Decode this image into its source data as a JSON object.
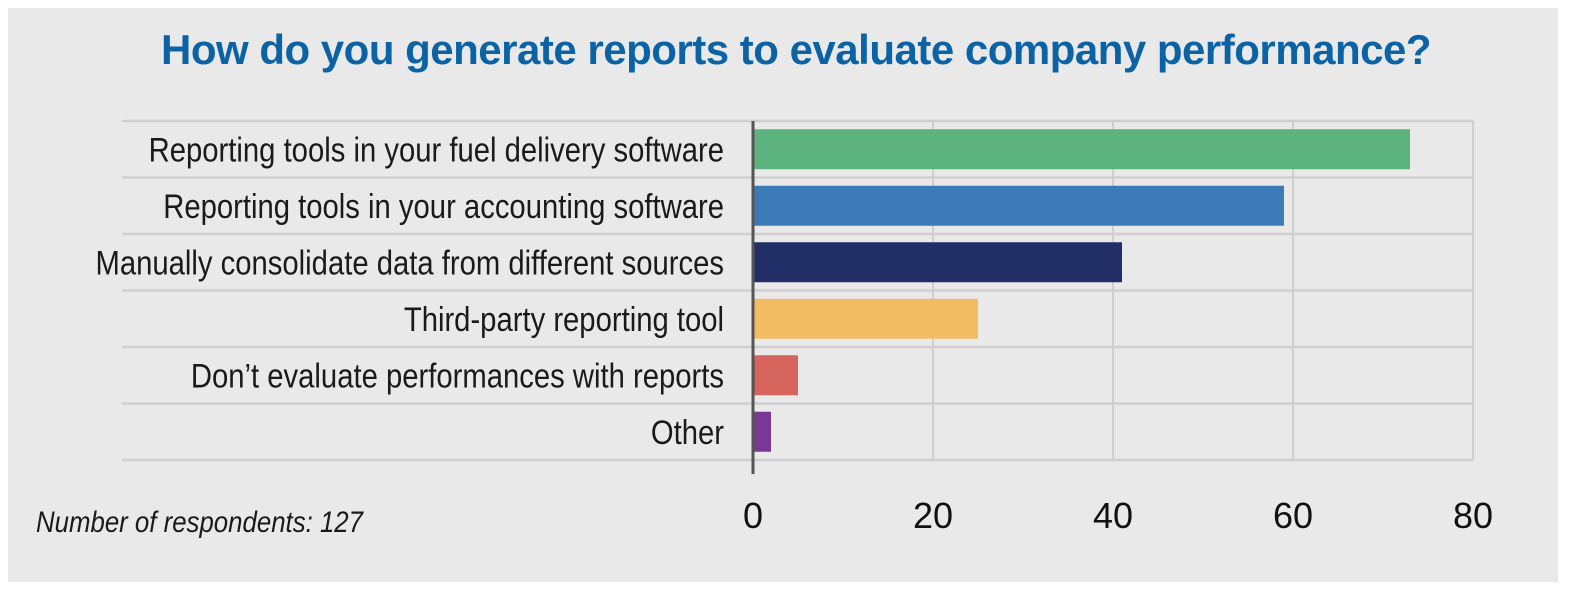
{
  "chart_data": {
    "type": "bar",
    "orientation": "horizontal",
    "title": "How do you generate reports to evaluate company performance?",
    "categories": [
      "Reporting tools in your fuel delivery software",
      "Reporting tools in your accounting software",
      "Manually consolidate data from different sources",
      "Third-party reporting tool",
      "Don’t evaluate performances with reports",
      "Other"
    ],
    "values": [
      73,
      59,
      41,
      25,
      5,
      2
    ],
    "colors": [
      "#5db37e",
      "#3d7ab8",
      "#222f66",
      "#f2bc62",
      "#d4645c",
      "#7a3796"
    ],
    "xlim": [
      0,
      80
    ],
    "xticks": [
      "0",
      "20",
      "40",
      "60",
      "80"
    ],
    "grid": true,
    "xlabel": "",
    "ylabel": ""
  },
  "footnote": "Number of respondents: 127",
  "colors": {
    "title": "#0b63a6",
    "background": "#e9e9e9",
    "grid": "#cfcfcf"
  }
}
